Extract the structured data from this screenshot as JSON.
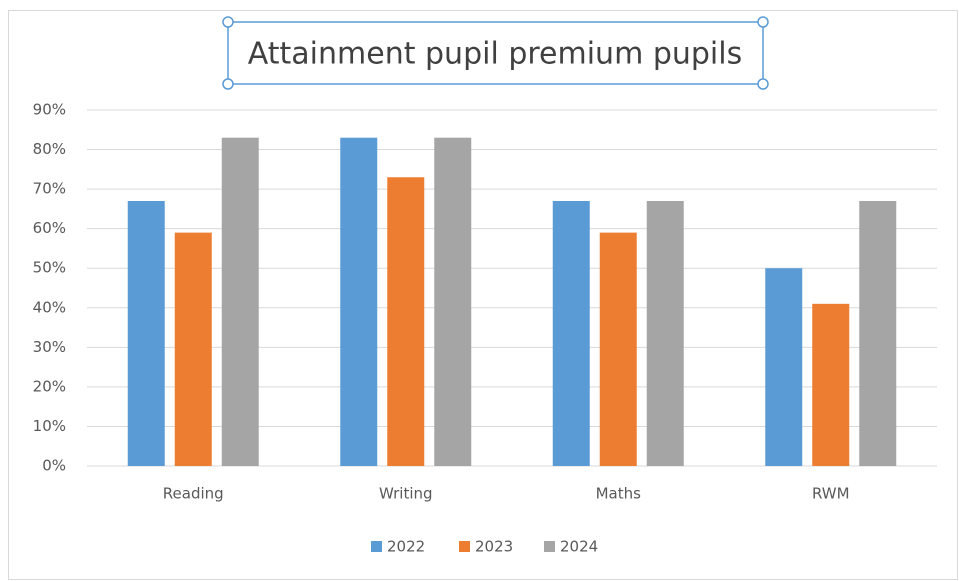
{
  "chart_data": {
    "type": "bar",
    "title": "Attainment pupil premium pupils",
    "categories": [
      "Reading",
      "Writing",
      "Maths",
      "RWM"
    ],
    "series": [
      {
        "name": "2022",
        "color": "#5b9bd5",
        "values": [
          67,
          83,
          67,
          50
        ]
      },
      {
        "name": "2023",
        "color": "#ed7d31",
        "values": [
          59,
          73,
          59,
          41
        ]
      },
      {
        "name": "2024",
        "color": "#a5a5a5",
        "values": [
          83,
          83,
          67,
          67
        ]
      }
    ],
    "ylim": [
      0,
      90
    ],
    "yticks": [
      {
        "value": 0,
        "label": "0%"
      },
      {
        "value": 10,
        "label": "10%"
      },
      {
        "value": 20,
        "label": "20%"
      },
      {
        "value": 30,
        "label": "30%"
      },
      {
        "value": 40,
        "label": "40%"
      },
      {
        "value": 50,
        "label": "50%"
      },
      {
        "value": 60,
        "label": "60%"
      },
      {
        "value": 70,
        "label": "70%"
      },
      {
        "value": 80,
        "label": "80%"
      },
      {
        "value": 90,
        "label": "90%"
      }
    ],
    "grid": true,
    "legend": "bottom"
  }
}
